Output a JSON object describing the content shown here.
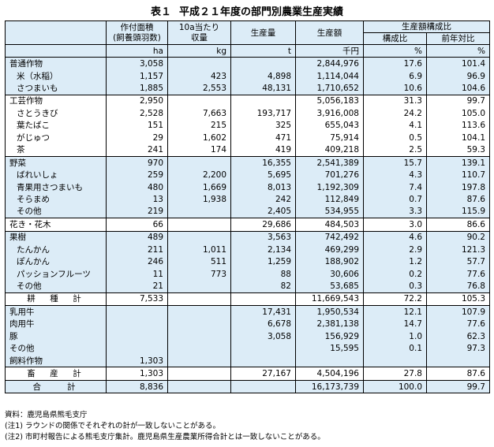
{
  "title": {
    "num": "表１",
    "text": "平成２１年度の部門別農業生産実績"
  },
  "headers": {
    "area": "作付面積\n(飼養頭羽数)",
    "yield": "10a当たり\n収量",
    "production": "生産量",
    "value": "生産額",
    "composition": "生産額構成比",
    "share": "構成比",
    "yoy": "前年対比"
  },
  "units": [
    "",
    "ha",
    "kg",
    "t",
    "千円",
    "%",
    "%"
  ],
  "rows": [
    {
      "label": "普通作物",
      "cells": [
        "3,058",
        "",
        "",
        "2,844,976",
        "17.6",
        "101.4"
      ],
      "group": 0,
      "sep": true
    },
    {
      "label": "米（水稲）",
      "cells": [
        "1,157",
        "423",
        "4,898",
        "1,114,044",
        "6.9",
        "96.9"
      ],
      "group": 0,
      "ind": true
    },
    {
      "label": "さつまいも",
      "cells": [
        "1,885",
        "2,553",
        "48,131",
        "1,710,652",
        "10.6",
        "104.6"
      ],
      "group": 0,
      "ind": true
    },
    {
      "label": "工芸作物",
      "cells": [
        "2,950",
        "",
        "",
        "5,056,183",
        "31.3",
        "99.7"
      ],
      "group": 1,
      "sep": true
    },
    {
      "label": "さとうきび",
      "cells": [
        "2,528",
        "7,663",
        "193,717",
        "3,916,008",
        "24.2",
        "105.0"
      ],
      "group": 1,
      "ind": true
    },
    {
      "label": "葉たばこ",
      "cells": [
        "151",
        "215",
        "325",
        "655,043",
        "4.1",
        "113.6"
      ],
      "group": 1,
      "ind": true
    },
    {
      "label": "がじゅつ",
      "cells": [
        "29",
        "1,602",
        "471",
        "75,914",
        "0.5",
        "104.1"
      ],
      "group": 1,
      "ind": true
    },
    {
      "label": "茶",
      "cells": [
        "241",
        "174",
        "419",
        "409,218",
        "2.5",
        "59.3"
      ],
      "group": 1,
      "ind": true
    },
    {
      "label": "野菜",
      "cells": [
        "970",
        "",
        "16,355",
        "2,541,389",
        "15.7",
        "139.1"
      ],
      "group": 0,
      "sep": true
    },
    {
      "label": "ばれいしょ",
      "cells": [
        "259",
        "2,200",
        "5,695",
        "701,276",
        "4.3",
        "110.7"
      ],
      "group": 0,
      "ind": true
    },
    {
      "label": "青果用さつまいも",
      "cells": [
        "480",
        "1,669",
        "8,013",
        "1,192,309",
        "7.4",
        "197.8"
      ],
      "group": 0,
      "ind": true
    },
    {
      "label": "そらまめ",
      "cells": [
        "13",
        "1,938",
        "242",
        "112,849",
        "0.7",
        "87.6"
      ],
      "group": 0,
      "ind": true
    },
    {
      "label": "その他",
      "cells": [
        "219",
        "",
        "2,405",
        "534,955",
        "3.3",
        "115.9"
      ],
      "group": 0,
      "ind": true
    },
    {
      "label": "花き・花木",
      "cells": [
        "66",
        "",
        "29,686",
        "484,503",
        "3.0",
        "86.6"
      ],
      "group": 1,
      "sep": true
    },
    {
      "label": "果樹",
      "cells": [
        "489",
        "",
        "3,563",
        "742,492",
        "4.6",
        "90.2"
      ],
      "group": 0,
      "sep": true
    },
    {
      "label": "たんかん",
      "cells": [
        "211",
        "1,011",
        "2,134",
        "469,299",
        "2.9",
        "121.3"
      ],
      "group": 0,
      "ind": true
    },
    {
      "label": "ぽんかん",
      "cells": [
        "246",
        "511",
        "1,259",
        "188,902",
        "1.2",
        "57.7"
      ],
      "group": 0,
      "ind": true
    },
    {
      "label": "パッションフルーツ",
      "cells": [
        "11",
        "773",
        "88",
        "30,606",
        "0.2",
        "77.6"
      ],
      "group": 0,
      "ind": true
    },
    {
      "label": "その他",
      "cells": [
        "21",
        "",
        "82",
        "53,685",
        "0.3",
        "76.8"
      ],
      "group": 0,
      "ind": true
    },
    {
      "label": "耕　種　計",
      "cells": [
        "7,533",
        "",
        "",
        "11,669,543",
        "72.2",
        "105.3"
      ],
      "group": 1,
      "sep": true,
      "ctr": true
    },
    {
      "label": "乳用牛",
      "cells": [
        "",
        "",
        "17,431",
        "1,950,534",
        "12.1",
        "107.9"
      ],
      "group": 0,
      "sep": true
    },
    {
      "label": "肉用牛",
      "cells": [
        "",
        "",
        "6,678",
        "2,381,138",
        "14.7",
        "77.6"
      ],
      "group": 0
    },
    {
      "label": "豚",
      "cells": [
        "",
        "",
        "3,058",
        "156,929",
        "1.0",
        "62.3"
      ],
      "group": 0
    },
    {
      "label": "その他",
      "cells": [
        "",
        "",
        "",
        "15,595",
        "0.1",
        "97.3"
      ],
      "group": 0
    },
    {
      "label": "飼料作物",
      "cells": [
        "1,303",
        "",
        "",
        "",
        "",
        ""
      ],
      "group": 0
    },
    {
      "label": "畜　産　計",
      "cells": [
        "1,303",
        "",
        "27,167",
        "4,504,196",
        "27.8",
        "87.6"
      ],
      "group": 1,
      "sep": true,
      "ctr": true
    },
    {
      "label": "合　　計",
      "cells": [
        "8,836",
        "",
        "",
        "16,173,739",
        "100.0",
        "99.7"
      ],
      "group": 0,
      "sep": true,
      "ctr": true,
      "total": true
    }
  ],
  "notes": [
    "資料：鹿児島県熊毛支庁",
    "(注1) ラウンドの関係でそれぞれの計が一致しないことがある。",
    "(注2) 市町村報告による熊毛支庁集計。鹿児島県生産農業所得合計とは一致しないことがある。"
  ]
}
